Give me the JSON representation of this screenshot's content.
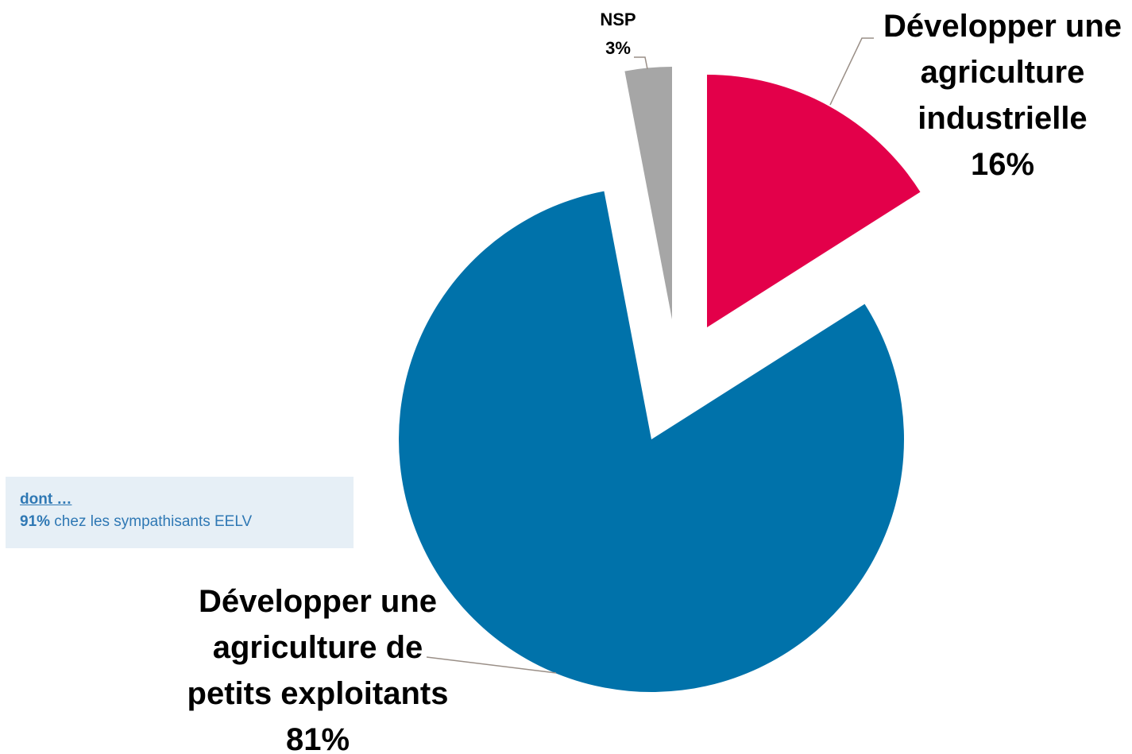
{
  "chart_data": {
    "type": "pie",
    "title": "",
    "slices": [
      {
        "label_lines": [
          "Développer une",
          "agriculture",
          "industrielle"
        ],
        "value": 16,
        "value_label": "16%",
        "color": "#e3004a"
      },
      {
        "label_lines": [
          "Développer une",
          "agriculture de",
          "petits exploitants"
        ],
        "value": 81,
        "value_label": "81%",
        "color": "#0072aa"
      },
      {
        "label_lines": [
          "NSP"
        ],
        "value": 3,
        "value_label": "3%",
        "color": "#a6a6a6"
      }
    ],
    "legend": "none",
    "exploded": true
  },
  "note": {
    "title": "dont …",
    "highlight": "91%",
    "text": " chez les sympathisants EELV",
    "background": "#e6eff6",
    "text_color": "#2f78b4"
  }
}
